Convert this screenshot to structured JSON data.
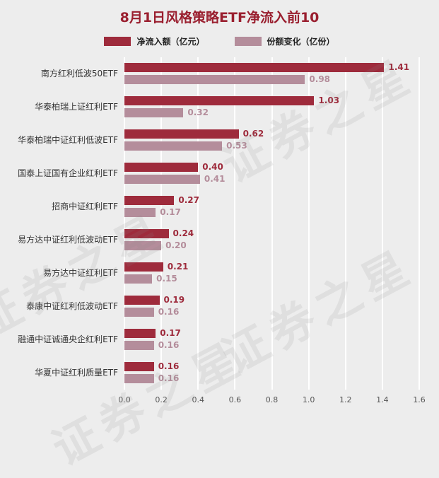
{
  "title": "8月1日风格策略ETF净流入前10",
  "watermark": "证券之星",
  "legend": [
    {
      "label": "净流入额（亿元）",
      "color": "#9e2b3c"
    },
    {
      "label": "份额变化（亿份）",
      "color": "#b48d9b"
    }
  ],
  "chart_data": {
    "type": "bar",
    "orientation": "horizontal",
    "title": "8月1日风格策略ETF净流入前10",
    "categories": [
      "南方红利低波50ETF",
      "华泰柏瑞上证红利ETF",
      "华泰柏瑞中证红利低波ETF",
      "国泰上证国有企业红利ETF",
      "招商中证红利ETF",
      "易方达中证红利低波动ETF",
      "易方达中证红利ETF",
      "泰康中证红利低波动ETF",
      "融通中证诚通央企红利ETF",
      "华夏中证红利质量ETF"
    ],
    "series": [
      {
        "name": "净流入额（亿元）",
        "color": "#9e2b3c",
        "values": [
          1.41,
          1.03,
          0.62,
          0.4,
          0.27,
          0.24,
          0.21,
          0.19,
          0.17,
          0.16
        ]
      },
      {
        "name": "份额变化（亿份）",
        "color": "#b48d9b",
        "values": [
          0.98,
          0.32,
          0.53,
          0.41,
          0.17,
          0.2,
          0.15,
          0.16,
          0.16,
          0.16
        ]
      }
    ],
    "xlabel": "",
    "ylabel": "",
    "xlim": [
      0,
      1.6
    ],
    "xticks": [
      "0.0",
      "0.2",
      "0.4",
      "0.6",
      "0.8",
      "1.0",
      "1.2",
      "1.4",
      "1.6"
    ],
    "grid": true,
    "legend_position": "top"
  }
}
